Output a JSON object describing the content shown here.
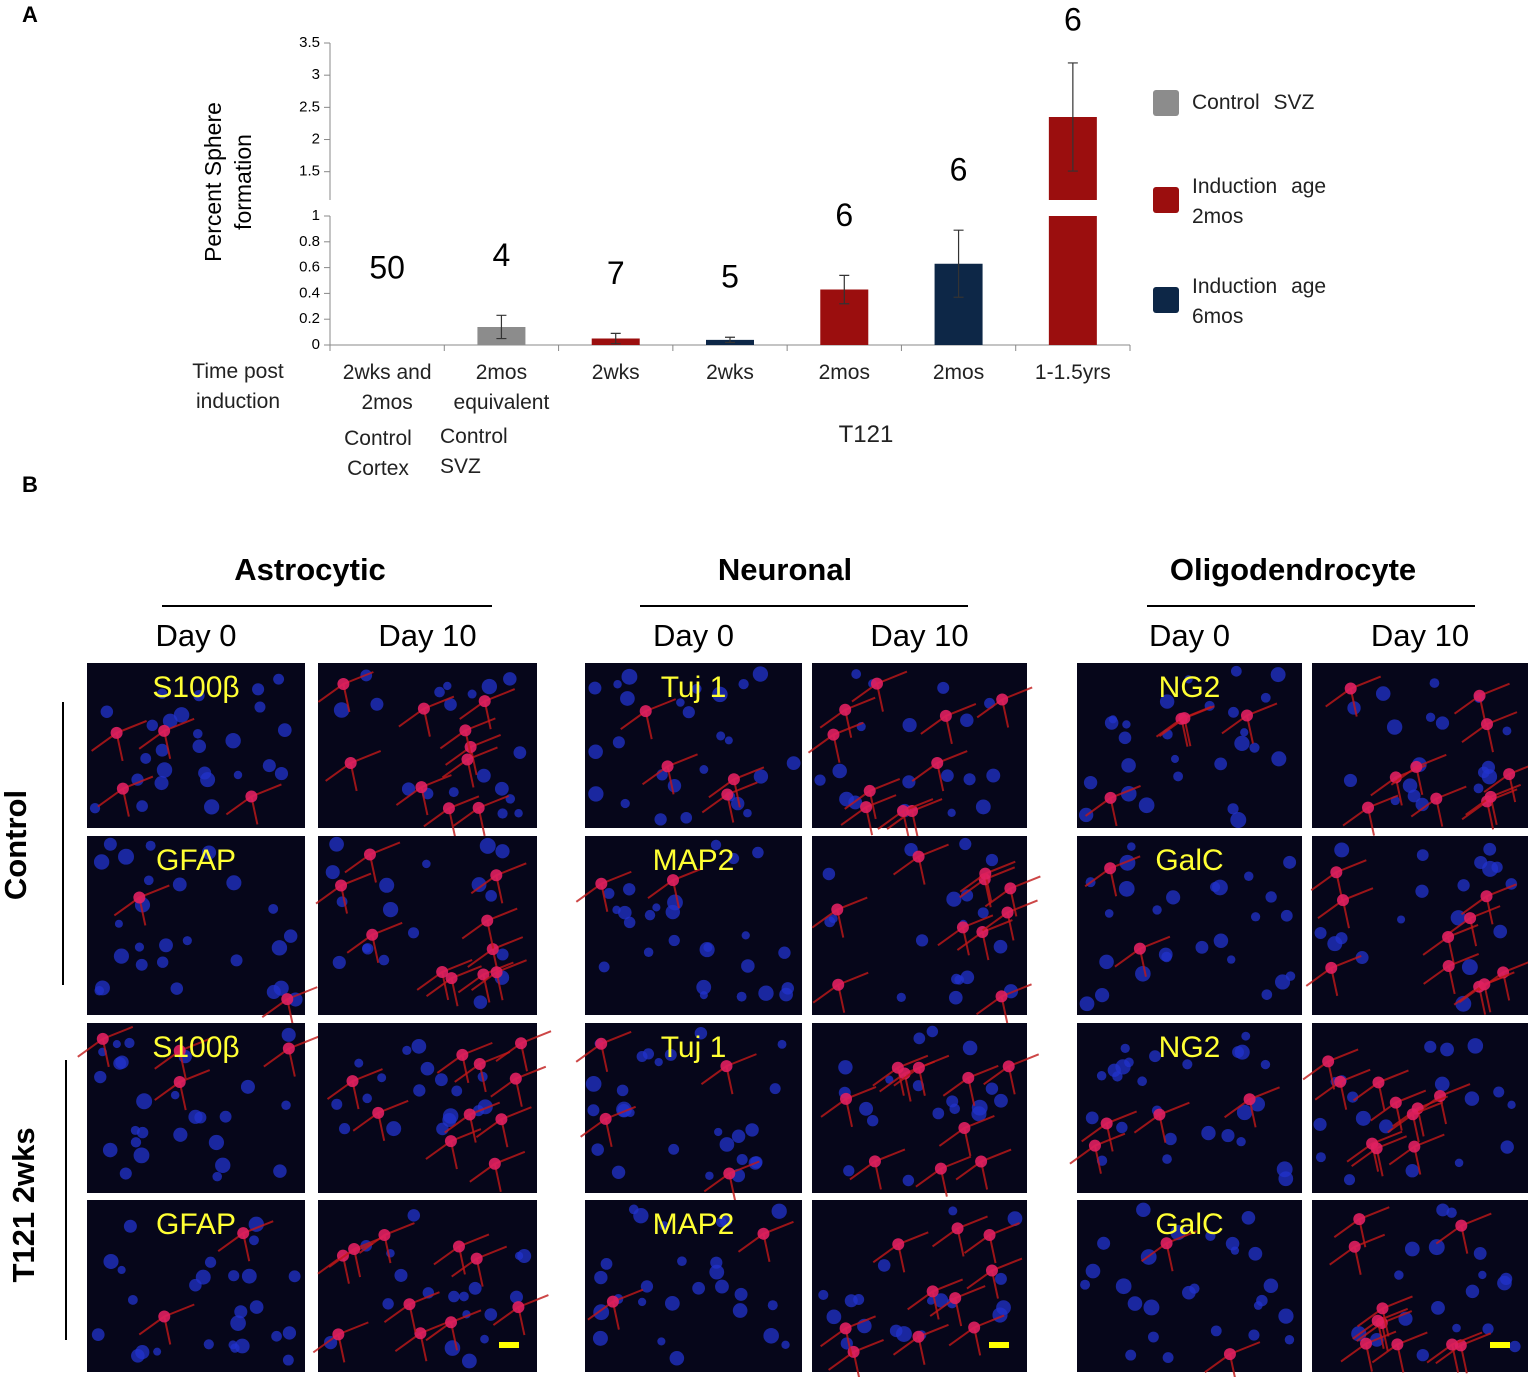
{
  "panel_labels": [
    "A",
    "B"
  ],
  "chart_data": {
    "type": "bar",
    "y_label": "Percent Sphere formation",
    "x_label": "Time post induction",
    "categories": [
      "2wks and 2mos",
      "2mos equivalent",
      "2wks",
      "2wks",
      "2mos",
      "2mos",
      "1-1.5yrs"
    ],
    "group_labels": [
      "Control Cortex",
      "Control SVZ",
      "T121"
    ],
    "values": [
      0,
      0.14,
      0.05,
      0.04,
      0.43,
      0.63,
      2.35
    ],
    "errors": [
      null,
      0.09,
      0.04,
      0.02,
      0.11,
      0.26,
      0.84
    ],
    "n_labels": [
      50,
      4,
      7,
      5,
      6,
      6,
      6
    ],
    "colors": [
      "#8c8c8c",
      "#8c8c8c",
      "#9b0e0e",
      "#0d2747",
      "#9b0e0e",
      "#0d2747",
      "#9b0e0e"
    ],
    "legend": [
      {
        "name": "Control SVZ",
        "color": "#8c8c8c"
      },
      {
        "name": "Induction age 2mos",
        "color": "#9b0e0e"
      },
      {
        "name": "Induction age 6mos",
        "color": "#0d2747"
      }
    ],
    "ylim": [
      0,
      3.5
    ],
    "ybreak": [
      1,
      1.06
    ],
    "yticks": [
      0,
      0.2,
      0.4,
      0.6,
      0.8,
      1,
      1.5,
      2,
      2.5,
      3,
      3.5
    ]
  },
  "panel_b": {
    "rows": [
      "Control",
      "T121 2wks"
    ],
    "groups": [
      {
        "title": "Astrocytic",
        "days": [
          "Day 0",
          "Day 10"
        ],
        "markers": [
          "S100β",
          "GFAP",
          "S100β",
          "GFAP"
        ]
      },
      {
        "title": "Neuronal",
        "days": [
          "Day 0",
          "Day 10"
        ],
        "markers": [
          "Tuj 1",
          "MAP2",
          "Tuj 1",
          "MAP2"
        ]
      },
      {
        "title": "Oligodendrocyte",
        "days": [
          "Day 0",
          "Day 10"
        ],
        "markers": [
          "NG2",
          "GalC",
          "NG2",
          "GalC"
        ]
      }
    ]
  }
}
